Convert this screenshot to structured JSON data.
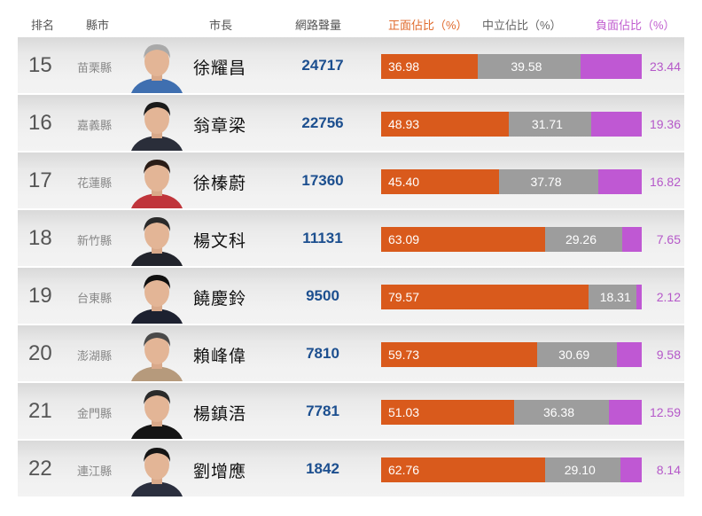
{
  "headers": {
    "rank": "排名",
    "county": "縣市",
    "mayor": "市長",
    "volume": "網路聲量",
    "positive": "正面佔比（%）",
    "neutral": "中立佔比（%）",
    "negative": "負面佔比（%）"
  },
  "colors": {
    "positive": "#d95a1c",
    "neutral": "#9d9d9d",
    "negative": "#bf58d3",
    "volume_text": "#1c4f8f"
  },
  "rows": [
    {
      "rank": "15",
      "county": "苗栗縣",
      "mayor": "徐耀昌",
      "volume": "24717",
      "positive": "36.98",
      "neutral": "39.58",
      "negative": "23.44",
      "photo_shirt": "#3f6fb0",
      "photo_hair": "#a9a9a9"
    },
    {
      "rank": "16",
      "county": "嘉義縣",
      "mayor": "翁章梁",
      "volume": "22756",
      "positive": "48.93",
      "neutral": "31.71",
      "negative": "19.36",
      "photo_shirt": "#2a2e3a",
      "photo_hair": "#1a1a1a"
    },
    {
      "rank": "17",
      "county": "花蓮縣",
      "mayor": "徐榛蔚",
      "volume": "17360",
      "positive": "45.40",
      "neutral": "37.78",
      "negative": "16.82",
      "photo_shirt": "#c0353b",
      "photo_hair": "#2a1c16"
    },
    {
      "rank": "18",
      "county": "新竹縣",
      "mayor": "楊文科",
      "volume": "11131",
      "positive": "63.09",
      "neutral": "29.26",
      "negative": "7.65",
      "photo_shirt": "#22242c",
      "photo_hair": "#2a2a2a"
    },
    {
      "rank": "19",
      "county": "台東縣",
      "mayor": "饒慶鈴",
      "volume": "9500",
      "positive": "79.57",
      "neutral": "18.31",
      "negative": "2.12",
      "photo_shirt": "#1d2130",
      "photo_hair": "#101010"
    },
    {
      "rank": "20",
      "county": "澎湖縣",
      "mayor": "賴峰偉",
      "volume": "7810",
      "positive": "59.73",
      "neutral": "30.69",
      "negative": "9.58",
      "photo_shirt": "#b69a7c",
      "photo_hair": "#4a4a4a"
    },
    {
      "rank": "21",
      "county": "金門縣",
      "mayor": "楊鎮浯",
      "volume": "7781",
      "positive": "51.03",
      "neutral": "36.38",
      "negative": "12.59",
      "photo_shirt": "#151515",
      "photo_hair": "#2a2a2a"
    },
    {
      "rank": "22",
      "county": "連江縣",
      "mayor": "劉增應",
      "volume": "1842",
      "positive": "62.76",
      "neutral": "29.10",
      "negative": "8.14",
      "photo_shirt": "#2b2f3e",
      "photo_hair": "#151515"
    }
  ],
  "chart_data": {
    "type": "bar",
    "stacked": true,
    "orientation": "horizontal",
    "title": "",
    "categories": [
      "苗栗縣 徐耀昌",
      "嘉義縣 翁章梁",
      "花蓮縣 徐榛蔚",
      "新竹縣 楊文科",
      "台東縣 饒慶鈴",
      "澎湖縣 賴峰偉",
      "金門縣 楊鎮浯",
      "連江縣 劉增應"
    ],
    "ranks": [
      15,
      16,
      17,
      18,
      19,
      20,
      21,
      22
    ],
    "volume": [
      24717,
      22756,
      17360,
      11131,
      9500,
      7810,
      7781,
      1842
    ],
    "series": [
      {
        "name": "正面佔比（%）",
        "color": "#d95a1c",
        "values": [
          36.98,
          48.93,
          45.4,
          63.09,
          79.57,
          59.73,
          51.03,
          62.76
        ]
      },
      {
        "name": "中立佔比（%）",
        "color": "#9d9d9d",
        "values": [
          39.58,
          31.71,
          37.78,
          29.26,
          18.31,
          30.69,
          36.38,
          29.1
        ]
      },
      {
        "name": "負面佔比（%）",
        "color": "#bf58d3",
        "values": [
          23.44,
          19.36,
          16.82,
          7.65,
          2.12,
          9.58,
          12.59,
          8.14
        ]
      }
    ],
    "xlim": [
      0,
      100
    ],
    "legend_position": "top",
    "grid": false
  }
}
